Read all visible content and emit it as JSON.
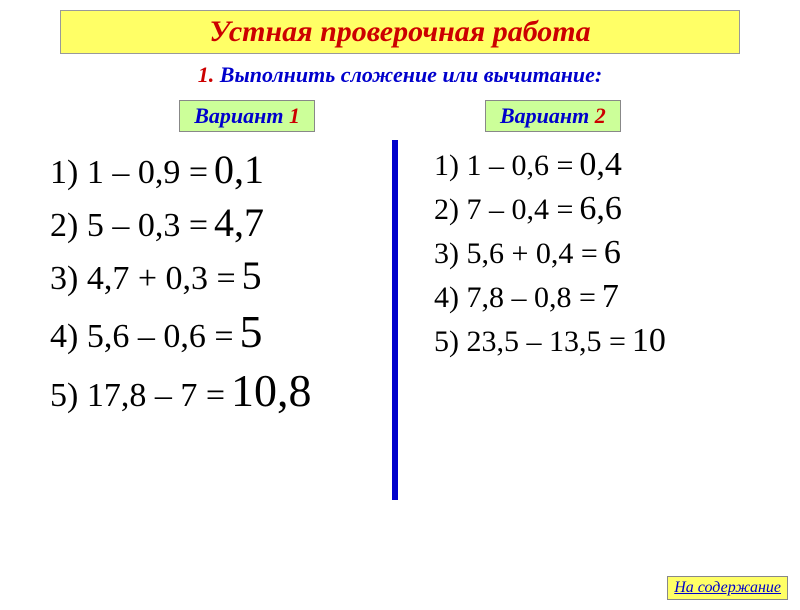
{
  "title": "Устная проверочная работа",
  "instruction": {
    "num": "1.",
    "text": "Выполнить сложение или вычитание:"
  },
  "variants": {
    "left": {
      "word": "Вариант",
      "num": "1"
    },
    "right": {
      "word": "Вариант",
      "num": "2"
    }
  },
  "colors": {
    "title_bg": "#ffff66",
    "title_text": "#cc0000",
    "instruction_num": "#cc0000",
    "instruction_text": "#0000cc",
    "variant_bg": "#ccff99",
    "variant_word": "#0000cc",
    "variant_num": "#cc0000",
    "divider": "#0000cc",
    "equation_text": "#000000",
    "link_bg": "#ffff66",
    "link_text": "#0000cc",
    "background": "#ffffff"
  },
  "typography": {
    "title_fontsize": 30,
    "instruction_fontsize": 22,
    "variant_fontsize": 22,
    "eq_left_fontsize": 34,
    "eq_right_fontsize": 30,
    "ans_left_fontsize": 40,
    "ans_right_fontsize": 34,
    "font_family": "Times New Roman",
    "italic": true
  },
  "left_problems": [
    {
      "eq": "1) 1 – 0,9 =",
      "ans": "0,1"
    },
    {
      "eq": "2) 5 – 0,3 =",
      "ans": "4,7"
    },
    {
      "eq": "3) 4,7 + 0,3 =",
      "ans": "5"
    },
    {
      "eq": "4) 5,6 – 0,6 =",
      "ans": "5"
    },
    {
      "eq": "5) 17,8 – 7 =",
      "ans": "10,8"
    }
  ],
  "right_problems": [
    {
      "eq": "1) 1 – 0,6 =",
      "ans": "0,4"
    },
    {
      "eq": "2) 7 – 0,4 =",
      "ans": "6,6"
    },
    {
      "eq": "3) 5,6 + 0,4 =",
      "ans": "6"
    },
    {
      "eq": "4) 7,8 – 0,8 =",
      "ans": "7"
    },
    {
      "eq": "5) 23,5 – 13,5 =",
      "ans": "10"
    }
  ],
  "footer_link": "На содержание"
}
